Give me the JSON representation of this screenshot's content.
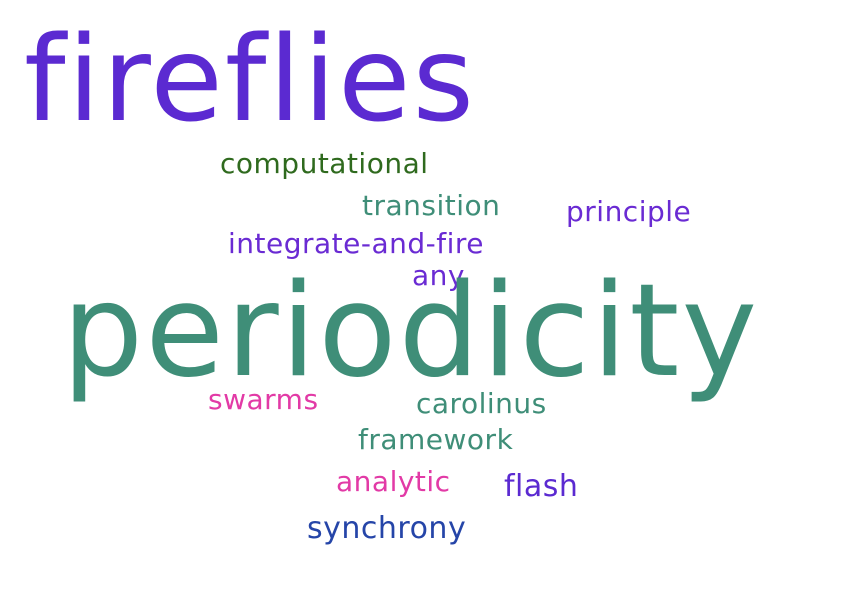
{
  "words": {
    "fireflies": {
      "text": "fireflies",
      "color": "#5b2ad1"
    },
    "computational": {
      "text": "computational",
      "color": "#2f6a1e"
    },
    "transition": {
      "text": "transition",
      "color": "#3f8e78"
    },
    "principle": {
      "text": "principle",
      "color": "#6a2bd3"
    },
    "integrate": {
      "text": "integrate-and-fire",
      "color": "#6a2bd3"
    },
    "any": {
      "text": "any",
      "color": "#6a2bd3"
    },
    "periodicity": {
      "text": "periodicity",
      "color": "#3f8e78"
    },
    "swarms": {
      "text": "swarms",
      "color": "#e23aa6"
    },
    "carolinus": {
      "text": "carolinus",
      "color": "#3f8e78"
    },
    "framework": {
      "text": "framework",
      "color": "#3f8e78"
    },
    "analytic": {
      "text": "analytic",
      "color": "#e23aa6"
    },
    "flash": {
      "text": "flash",
      "color": "#5b2ad1"
    },
    "synchrony": {
      "text": "synchrony",
      "color": "#2545a8"
    }
  }
}
